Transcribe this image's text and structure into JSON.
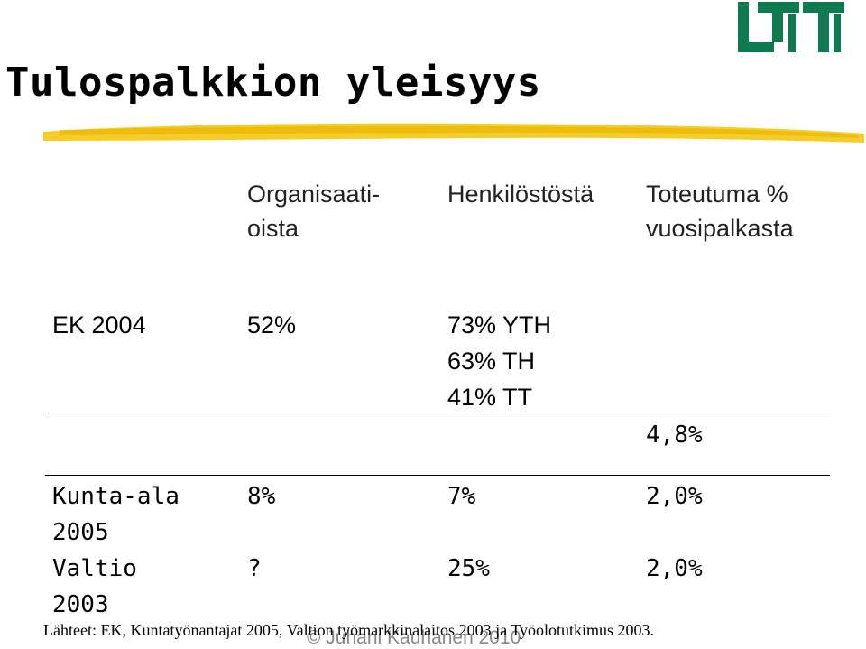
{
  "slide": {
    "title": "Tulospalkkion yleisyys",
    "logo_color": "#0d7a4f",
    "accent_color": "#f5c400",
    "headers": {
      "col1": [
        "Organisaati-",
        "oista"
      ],
      "col2": "Henkilöstöstä",
      "col3": [
        "Toteutuma %",
        "vuosipalkasta"
      ]
    },
    "rows": {
      "ek": {
        "label": "EK 2004",
        "organizations": "52%",
        "staff": [
          "73% YTH",
          "63% TH",
          "41% TT"
        ],
        "realization": "4,8%"
      },
      "kunta": {
        "label": [
          "Kunta-ala",
          "2005"
        ],
        "organizations": "8%",
        "staff": "7%",
        "realization": "2,0%"
      },
      "valtio": {
        "label": [
          "Valtio",
          "2003"
        ],
        "organizations": "?",
        "staff": "25%",
        "realization": "2,0%"
      }
    },
    "sources": "Lähteet: EK, Kuntatyönantajat 2005, Valtion työmarkkinalaitos 2003 ja Työolotutkimus 2003.",
    "copyright": "© Juhani Kauhanen 2010"
  }
}
